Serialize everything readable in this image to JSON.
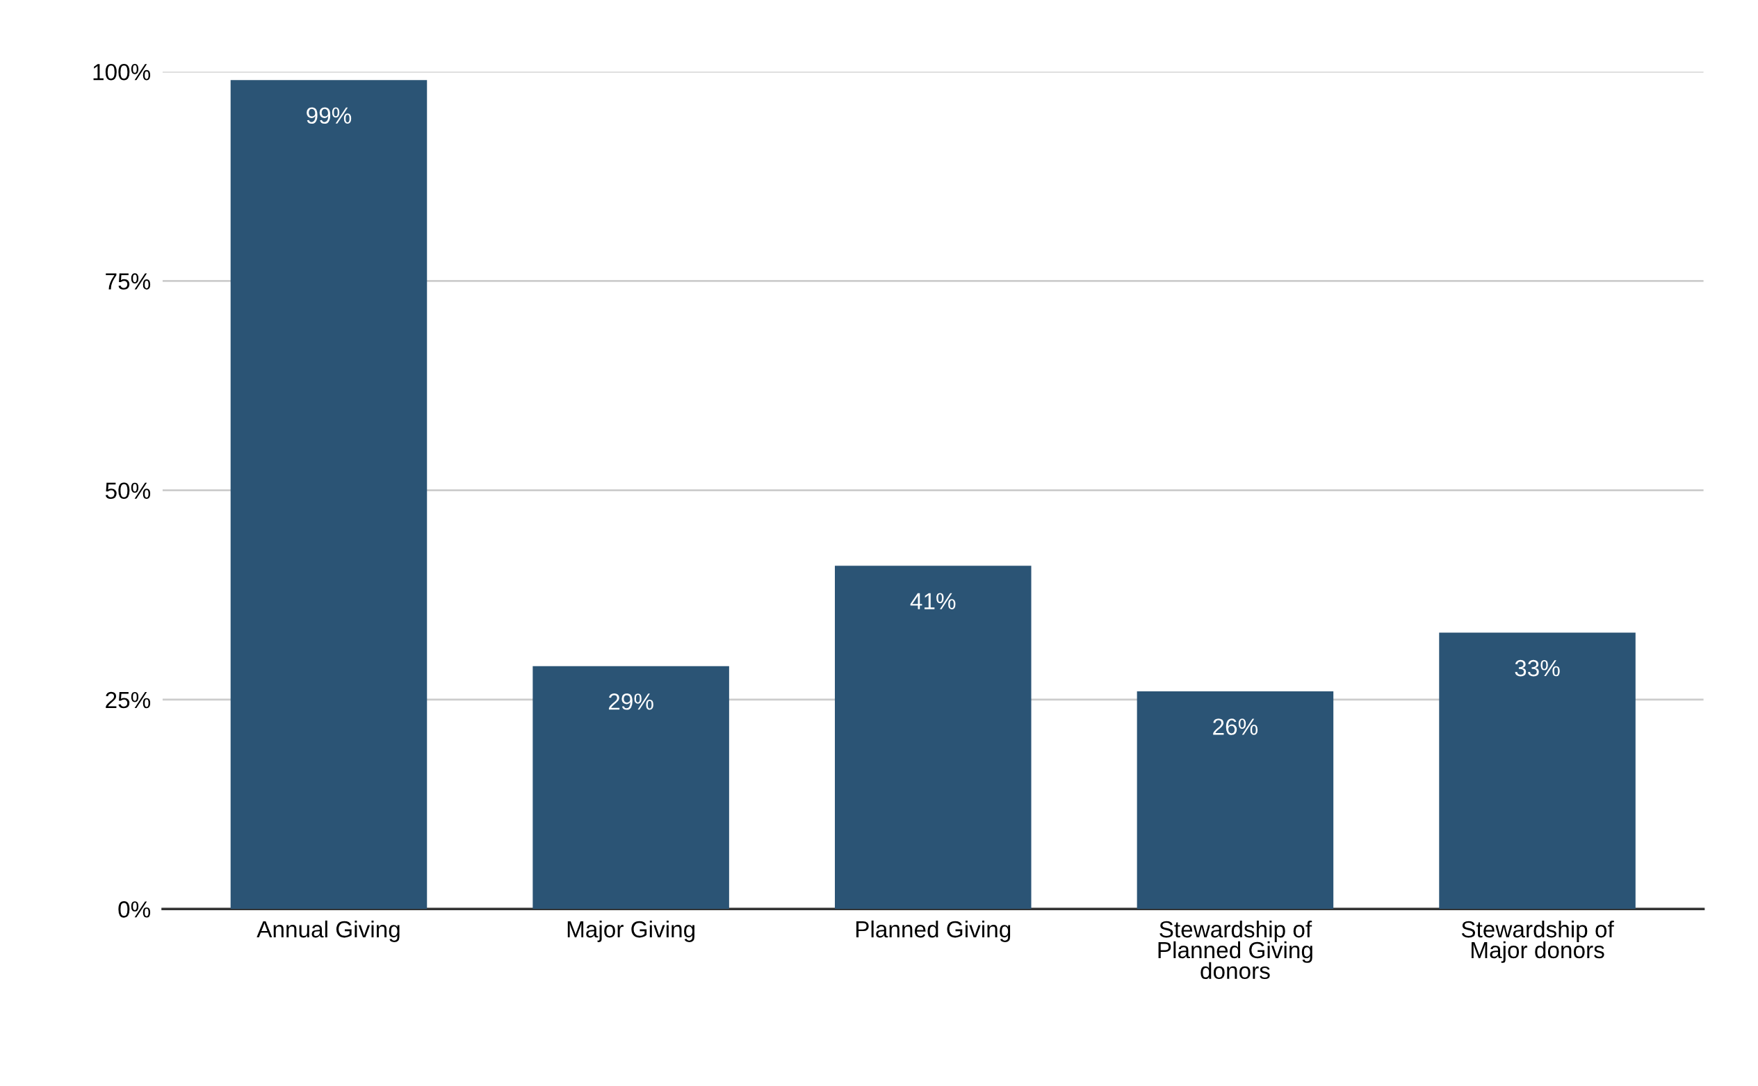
{
  "chart_data": {
    "type": "bar",
    "categories": [
      "Annual Giving",
      "Major Giving",
      "Planned Giving",
      "Stewardship of\nPlanned Giving\ndonors",
      "Stewardship of\nMajor donors"
    ],
    "values": [
      99,
      29,
      41,
      26,
      33
    ],
    "color": "#2b5475",
    "value_labels": [
      "99%",
      "29%",
      "41%",
      "26%",
      "33%"
    ],
    "ylim": [
      0,
      100
    ],
    "yticks": [
      {
        "value": 0,
        "label": "0%"
      },
      {
        "value": 25,
        "label": "25%"
      },
      {
        "value": 50,
        "label": "50%"
      },
      {
        "value": 75,
        "label": "75%"
      },
      {
        "value": 100,
        "label": "100%"
      }
    ],
    "grid": "y"
  }
}
